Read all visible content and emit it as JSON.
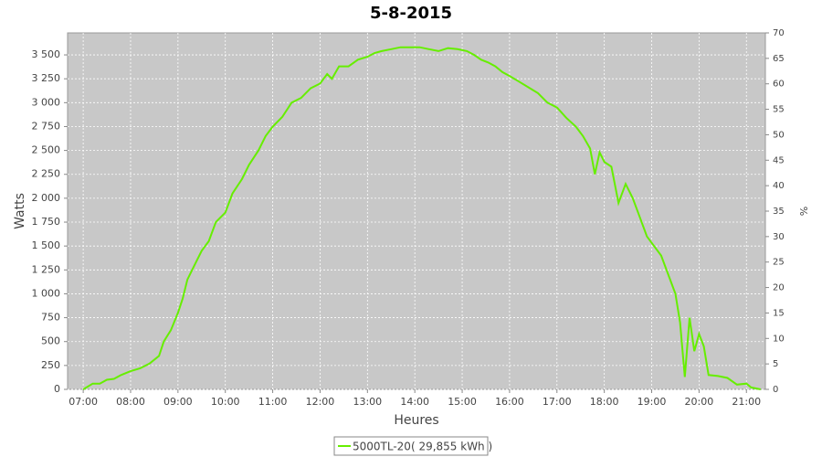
{
  "chart_data": {
    "type": "line",
    "title": "5-8-2015",
    "x_label": "Heures",
    "y_label": "Watts",
    "y2_label": "%",
    "grid": true,
    "xlim": [
      6.67,
      21.4
    ],
    "xticks": [
      {
        "value": 7,
        "label": "07:00"
      },
      {
        "value": 8,
        "label": "08:00"
      },
      {
        "value": 9,
        "label": "09:00"
      },
      {
        "value": 10,
        "label": "10:00"
      },
      {
        "value": 11,
        "label": "11:00"
      },
      {
        "value": 12,
        "label": "12:00"
      },
      {
        "value": 13,
        "label": "13:00"
      },
      {
        "value": 14,
        "label": "14:00"
      },
      {
        "value": 15,
        "label": "15:00"
      },
      {
        "value": 16,
        "label": "16:00"
      },
      {
        "value": 17,
        "label": "17:00"
      },
      {
        "value": 18,
        "label": "18:00"
      },
      {
        "value": 19,
        "label": "19:00"
      },
      {
        "value": 20,
        "label": "20:00"
      },
      {
        "value": 21,
        "label": "21:00"
      }
    ],
    "ylim": [
      0,
      3730
    ],
    "yticks": [
      0,
      250,
      500,
      750,
      {
        "value": 1000,
        "label": "1 000"
      },
      {
        "value": 1250,
        "label": "1 250"
      },
      {
        "value": 1500,
        "label": "1 500"
      },
      {
        "value": 1750,
        "label": "1 750"
      },
      {
        "value": 2000,
        "label": "2 000"
      },
      {
        "value": 2250,
        "label": "2 250"
      },
      {
        "value": 2500,
        "label": "2 500"
      },
      {
        "value": 2750,
        "label": "2 750"
      },
      {
        "value": 3000,
        "label": "3 000"
      },
      {
        "value": 3250,
        "label": "3 250"
      },
      {
        "value": 3500,
        "label": "3 500"
      }
    ],
    "y2lim": [
      0,
      70
    ],
    "y2ticks": [
      0,
      5,
      10,
      15,
      20,
      25,
      30,
      35,
      40,
      45,
      50,
      55,
      60,
      65,
      70
    ],
    "x": [
      7.0,
      7.1,
      7.2,
      7.35,
      7.5,
      7.65,
      7.8,
      8.0,
      8.2,
      8.4,
      8.6,
      8.7,
      8.85,
      9.0,
      9.1,
      9.2,
      9.35,
      9.5,
      9.65,
      9.8,
      10.0,
      10.15,
      10.35,
      10.5,
      10.7,
      10.85,
      11.0,
      11.2,
      11.4,
      11.6,
      11.8,
      12.0,
      12.15,
      12.25,
      12.4,
      12.6,
      12.8,
      13.0,
      13.15,
      13.3,
      13.5,
      13.7,
      13.9,
      14.1,
      14.3,
      14.5,
      14.7,
      14.9,
      15.1,
      15.25,
      15.4,
      15.55,
      15.7,
      15.85,
      16.0,
      16.2,
      16.4,
      16.6,
      16.8,
      17.0,
      17.2,
      17.4,
      17.55,
      17.7,
      17.8,
      17.9,
      18.0,
      18.15,
      18.3,
      18.45,
      18.6,
      18.75,
      18.9,
      19.05,
      19.2,
      19.35,
      19.5,
      19.6,
      19.7,
      19.8,
      19.9,
      20.0,
      20.1,
      20.2,
      20.4,
      20.6,
      20.8,
      21.0,
      21.1,
      21.3
    ],
    "series": [
      {
        "name": "5000TL-20( 29,855 kWh )",
        "color": "#66ee00",
        "values": [
          0,
          30,
          60,
          60,
          100,
          110,
          150,
          190,
          220,
          270,
          350,
          500,
          620,
          800,
          950,
          1150,
          1300,
          1450,
          1550,
          1750,
          1850,
          2050,
          2200,
          2350,
          2500,
          2650,
          2750,
          2850,
          3000,
          3050,
          3150,
          3200,
          3300,
          3250,
          3380,
          3380,
          3450,
          3480,
          3520,
          3540,
          3560,
          3580,
          3580,
          3580,
          3560,
          3540,
          3570,
          3560,
          3540,
          3500,
          3450,
          3420,
          3380,
          3320,
          3280,
          3220,
          3160,
          3100,
          3000,
          2950,
          2840,
          2750,
          2650,
          2520,
          2250,
          2480,
          2380,
          2330,
          1950,
          2150,
          2000,
          1800,
          1600,
          1500,
          1400,
          1200,
          1000,
          700,
          130,
          750,
          400,
          580,
          450,
          150,
          140,
          120,
          50,
          60,
          20,
          0
        ]
      }
    ]
  }
}
